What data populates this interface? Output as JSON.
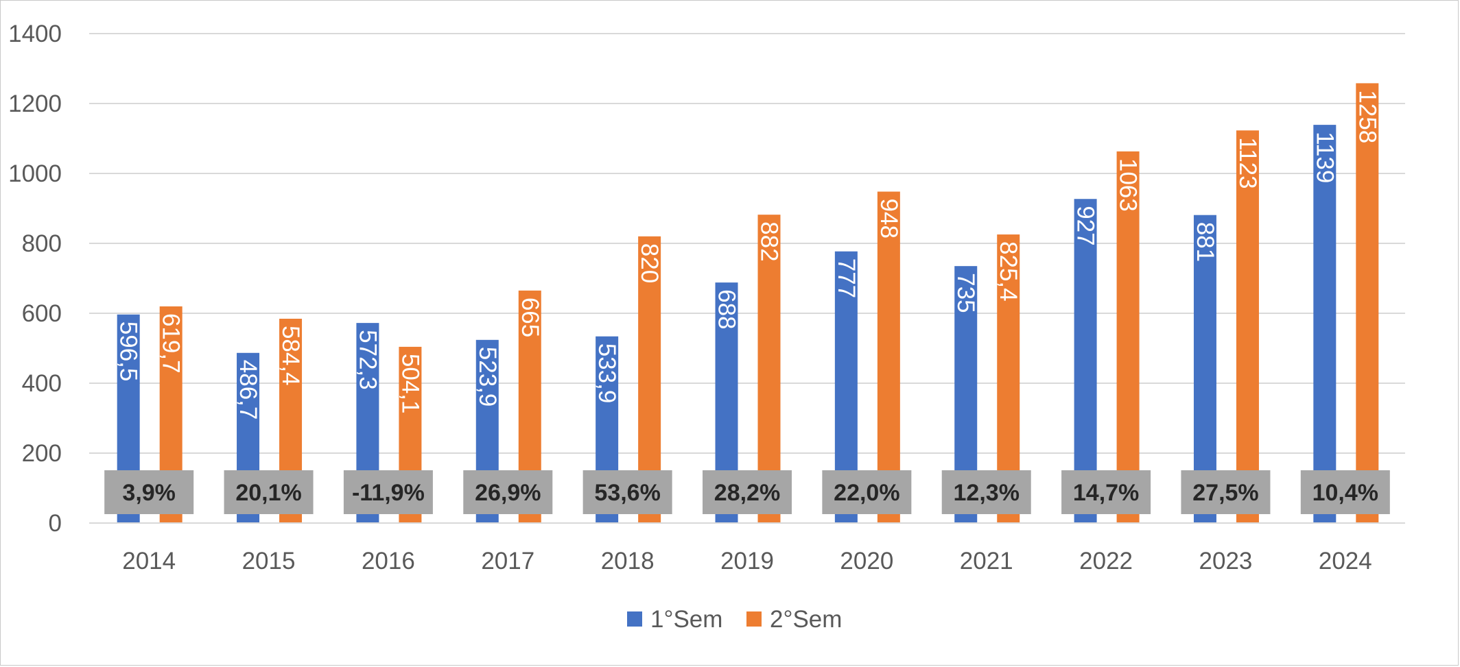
{
  "chart_data": {
    "type": "bar",
    "title": "",
    "xlabel": "",
    "ylabel": "",
    "ylim": [
      0,
      1400
    ],
    "yticks": [
      0,
      200,
      400,
      600,
      800,
      1000,
      1200,
      1400
    ],
    "grid": true,
    "legend_position": "bottom",
    "categories": [
      "2014",
      "2015",
      "2016",
      "2017",
      "2018",
      "2019",
      "2020",
      "2021",
      "2022",
      "2023",
      "2024"
    ],
    "series": [
      {
        "name": "1°Sem",
        "color": "#4472c4",
        "values": [
          596.5,
          486.7,
          572.3,
          523.9,
          533.9,
          688,
          777,
          735,
          927,
          881,
          1139
        ],
        "labels": [
          "596,5",
          "486,7",
          "572,3",
          "523,9",
          "533,9",
          "688",
          "777",
          "735",
          "927",
          "881",
          "1139"
        ]
      },
      {
        "name": "2°Sem",
        "color": "#ed7d31",
        "values": [
          619.7,
          584.4,
          504.1,
          665,
          820,
          882,
          948,
          825.4,
          1063,
          1123,
          1258
        ],
        "labels": [
          "619,7",
          "584,4",
          "504,1",
          "665",
          "820",
          "882",
          "948",
          "825,4",
          "1063",
          "1123",
          "1258"
        ]
      }
    ],
    "annotations": {
      "box_color": "#a6a6a6",
      "labels": [
        "3,9%",
        "20,1%",
        "-11,9%",
        "26,9%",
        "53,6%",
        "28,2%",
        "22,0%",
        "12,3%",
        "14,7%",
        "27,5%",
        "10,4%"
      ]
    }
  }
}
